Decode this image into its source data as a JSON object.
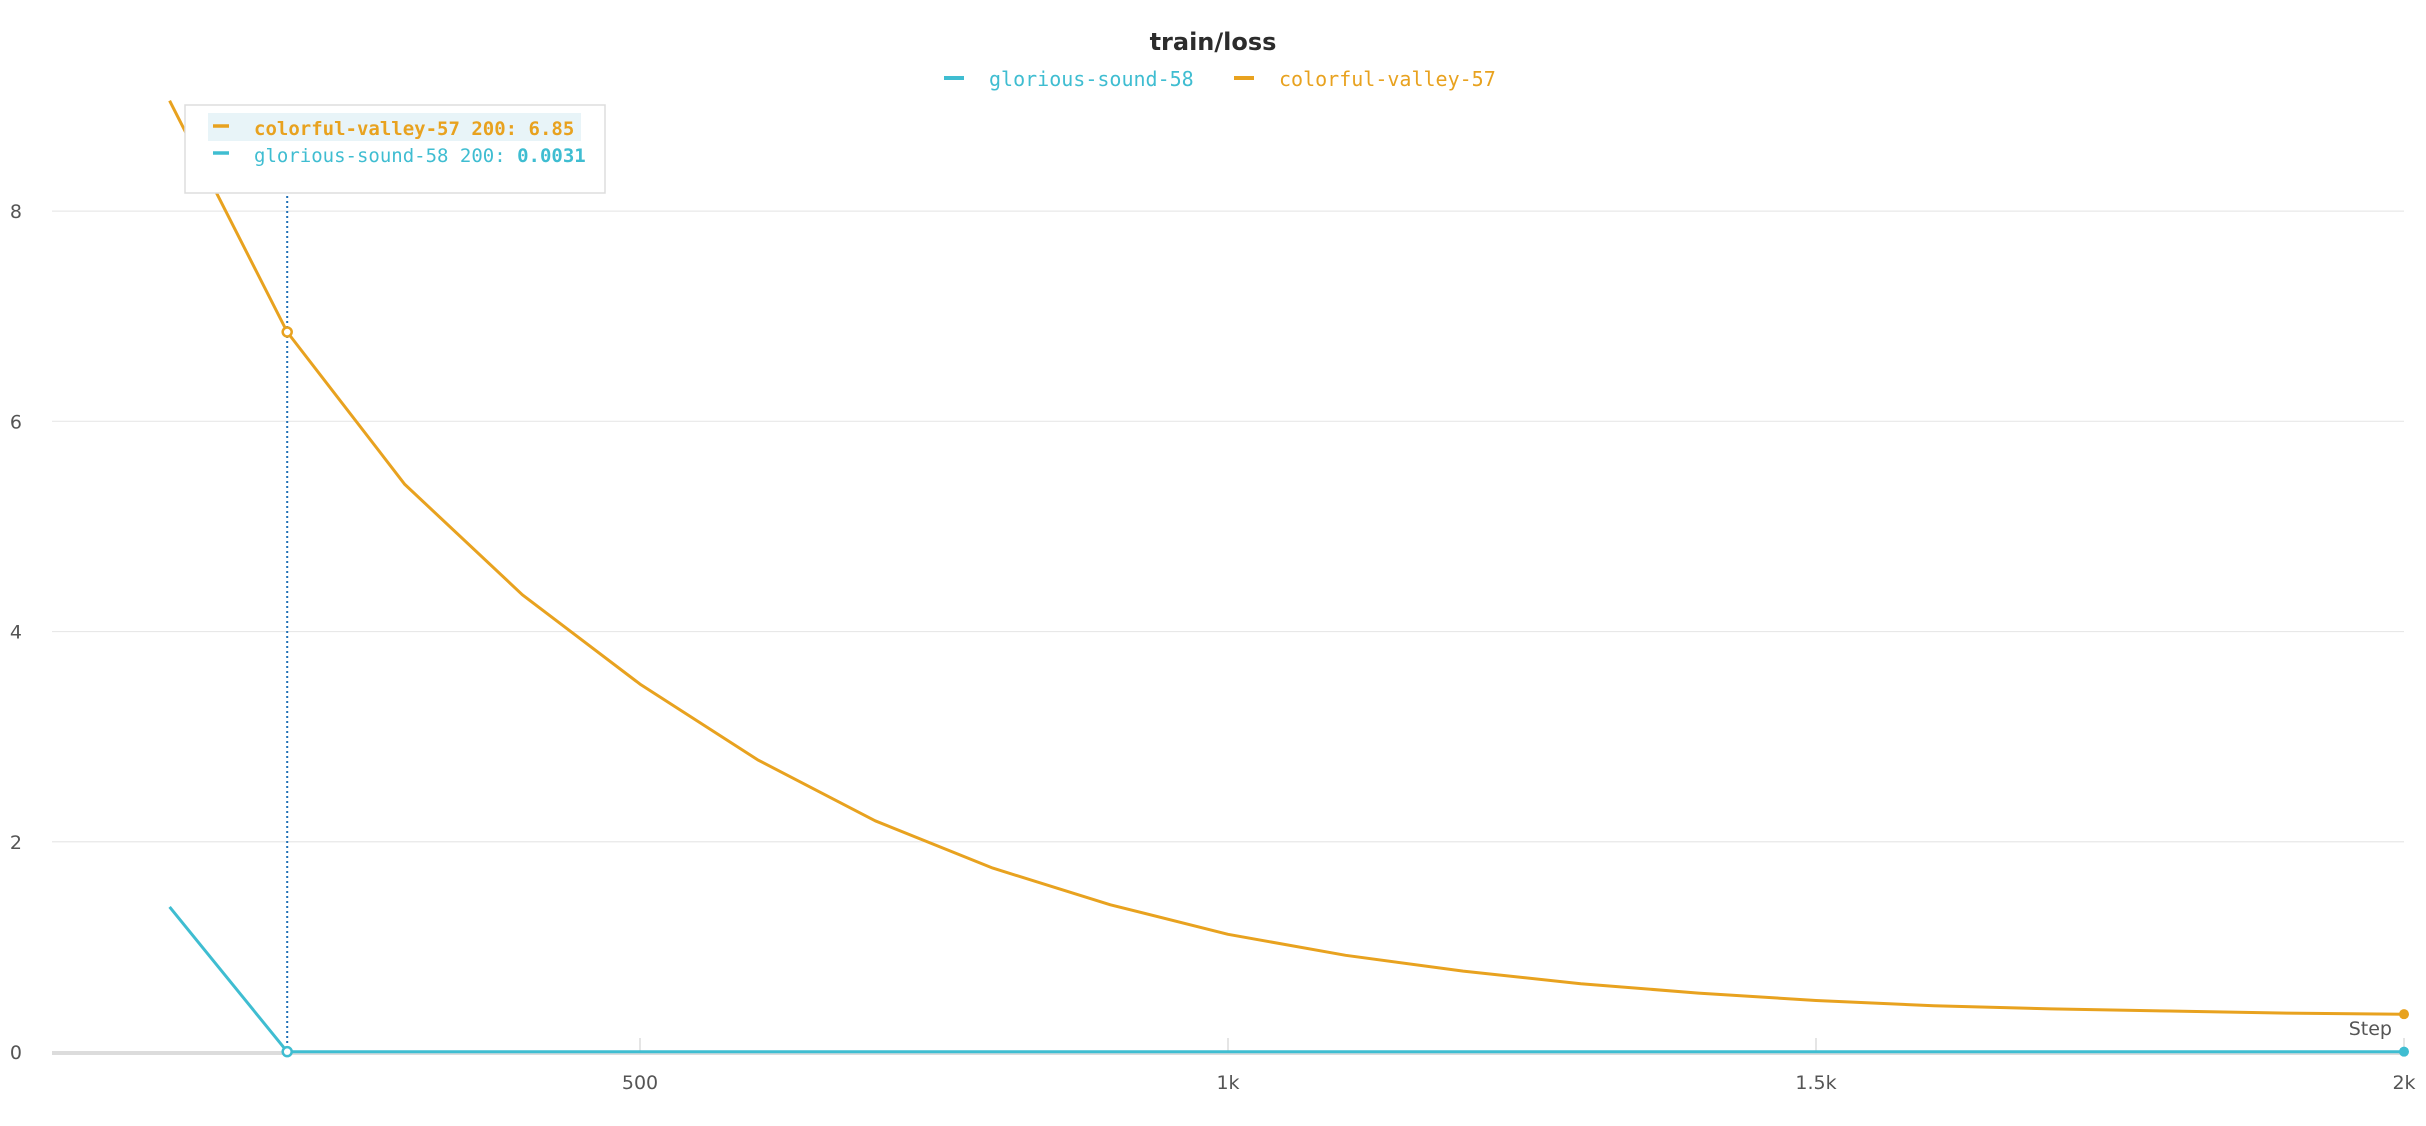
{
  "chart_data": {
    "type": "line",
    "title": "train/loss",
    "xlabel": "Step",
    "ylabel": "",
    "xlim": [
      0,
      2000
    ],
    "ylim": [
      0,
      9
    ],
    "x_ticks": [
      {
        "value": 500,
        "label": "500"
      },
      {
        "value": 1000,
        "label": "1k"
      },
      {
        "value": 1500,
        "label": "1.5k"
      },
      {
        "value": 2000,
        "label": "2k"
      }
    ],
    "y_ticks": [
      {
        "value": 0,
        "label": "0"
      },
      {
        "value": 2,
        "label": "2"
      },
      {
        "value": 4,
        "label": "4"
      },
      {
        "value": 6,
        "label": "6"
      },
      {
        "value": 8,
        "label": "8"
      }
    ],
    "grid": true,
    "legend_position": "top-center",
    "series": [
      {
        "name": "glorious-sound-58",
        "color": "#3fbdd1",
        "x": [
          100,
          200,
          300,
          400,
          500,
          600,
          700,
          800,
          900,
          1000,
          1100,
          1200,
          1300,
          1400,
          1500,
          1600,
          1700,
          1800,
          1900,
          2000
        ],
        "y": [
          1.38,
          0.0031,
          0.003,
          0.003,
          0.003,
          0.003,
          0.003,
          0.003,
          0.003,
          0.003,
          0.003,
          0.003,
          0.003,
          0.003,
          0.003,
          0.003,
          0.003,
          0.003,
          0.003,
          0.003
        ]
      },
      {
        "name": "colorful-valley-57",
        "color": "#e8a21f",
        "x": [
          100,
          200,
          300,
          400,
          500,
          600,
          700,
          800,
          900,
          1000,
          1100,
          1200,
          1300,
          1400,
          1500,
          1600,
          1700,
          1800,
          1900,
          2000
        ],
        "y": [
          9.05,
          6.85,
          5.4,
          4.35,
          3.5,
          2.78,
          2.2,
          1.75,
          1.4,
          1.12,
          0.92,
          0.77,
          0.65,
          0.56,
          0.49,
          0.44,
          0.41,
          0.39,
          0.37,
          0.36
        ]
      }
    ],
    "hover": {
      "step": 200,
      "items": [
        {
          "series": "colorful-valley-57",
          "prefix": "colorful-valley-57 200: ",
          "value": "6.85",
          "color": "#e8a21f",
          "highlighted": true
        },
        {
          "series": "glorious-sound-58",
          "prefix": "glorious-sound-58 200: ",
          "value": "0.0031",
          "color": "#3fbdd1",
          "highlighted": false
        }
      ]
    }
  }
}
